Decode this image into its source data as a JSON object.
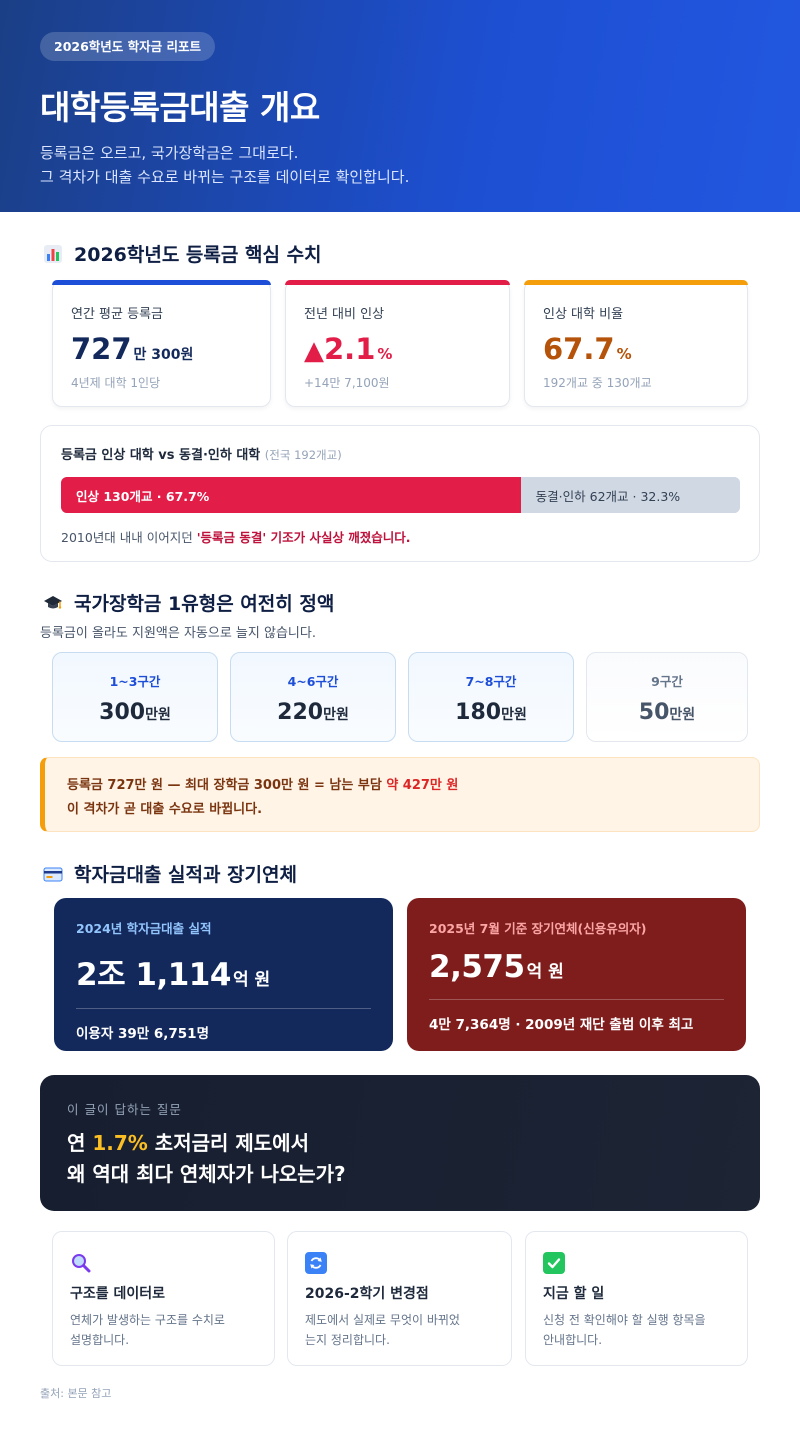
{
  "header": {
    "badge": "2026학년도 학자금 리포트",
    "title": "대학등록금대출 개요",
    "subtitle_line1": "등록금은 오르고, 국가장학금은 그대로다.",
    "subtitle_line2": "그 격차가 대출 수요로 바뀌는 구조를 데이터로 확인합니다."
  },
  "section1": {
    "title": "2026학년도 등록금 핵심 수치",
    "icon": "bar-chart-icon",
    "cards": [
      {
        "label": "연간 평균 등록금",
        "value": "727",
        "value_unit": "만 300원",
        "sub": "4년제 대학 1인당",
        "accent": "#1d4ed8"
      },
      {
        "label": "전년 대비 인상",
        "arrow": "▲",
        "value": "2.1",
        "value_unit": "%",
        "sub": "+14만 7,100원",
        "accent": "#e11d48"
      },
      {
        "label": "인상 대학 비율",
        "value": "67.7",
        "value_unit": "%",
        "sub": "192개교 중 130개교",
        "accent": "#f59e0b"
      }
    ],
    "compare": {
      "title": "등록금 인상 대학 vs 동결·인하 대학",
      "title_note": "(전국 192개교)",
      "raised_label": "인상 130개교 · 67.7%",
      "raised_share": 67.7,
      "frozen_label": "동결·인하 62개교 · 32.3%",
      "note_prefix": "2010년대 내내 이어지던 ",
      "note_highlight": "'등록금 동결' 기조가 사실상 깨졌습니다."
    }
  },
  "section2": {
    "title": "국가장학금 1유형은 여전히 정액",
    "icon": "graduation-cap-icon",
    "desc": "등록금이 올라도 지원액은 자동으로 늘지 않습니다.",
    "unit": "만원",
    "tiers": [
      {
        "label": "1~3구간",
        "value": "300",
        "color": "#1d4ed8"
      },
      {
        "label": "4~6구간",
        "value": "220",
        "color": "#1d4ed8"
      },
      {
        "label": "7~8구간",
        "value": "180",
        "color": "#1d4ed8"
      },
      {
        "label": "9구간",
        "value": "50",
        "color": "#64748b"
      }
    ],
    "warning": {
      "line1_prefix": "등록금 727만 원 — 최대 장학금 300만 원 = 남는 부담 ",
      "line1_highlight": "약 427만 원",
      "line2": "이 격차가 곧 대출 수요로 바뀝니다."
    }
  },
  "section3": {
    "title": "학자금대출 실적과 장기연체",
    "icon": "credit-card-icon",
    "cards": [
      {
        "label": "2024년 학자금대출 실적",
        "value": "2조 1,114",
        "unit": "억 원",
        "foot": "이용자 39만 6,751명",
        "bg": "#13295c",
        "label_color": "#93c5fd"
      },
      {
        "label": "2025년 7월 기준 장기연체(신용유의자)",
        "value": "2,575",
        "unit": "억 원",
        "foot": "4만 7,364명 · 2009년 재단 출범 이후 최고",
        "bg": "#7f1d1d",
        "label_color": "#fca5a5"
      }
    ]
  },
  "question": {
    "label": "이 글이 답하는 질문",
    "line1_prefix": "연 ",
    "line1_highlight": "1.7%",
    "line1_suffix": " 초저금리 제도에서",
    "line2": "왜 역대 최다 연체자가 나오는가?"
  },
  "features": [
    {
      "icon": "magnifier-icon",
      "title": "구조를 데이터로",
      "desc_line1": "연체가 발생하는 구조를 수치로",
      "desc_line2": "설명합니다."
    },
    {
      "icon": "refresh-icon",
      "title": "2026-2학기 변경점",
      "desc_line1": "제도에서 실제로 무엇이 바뀌었",
      "desc_line2": "는지 정리합니다."
    },
    {
      "icon": "check-icon",
      "title": "지금 할 일",
      "desc_line1": "신청 전 확인해야 할 실행 항목을",
      "desc_line2": "안내합니다."
    }
  ],
  "source": "출처: 본문 참고"
}
